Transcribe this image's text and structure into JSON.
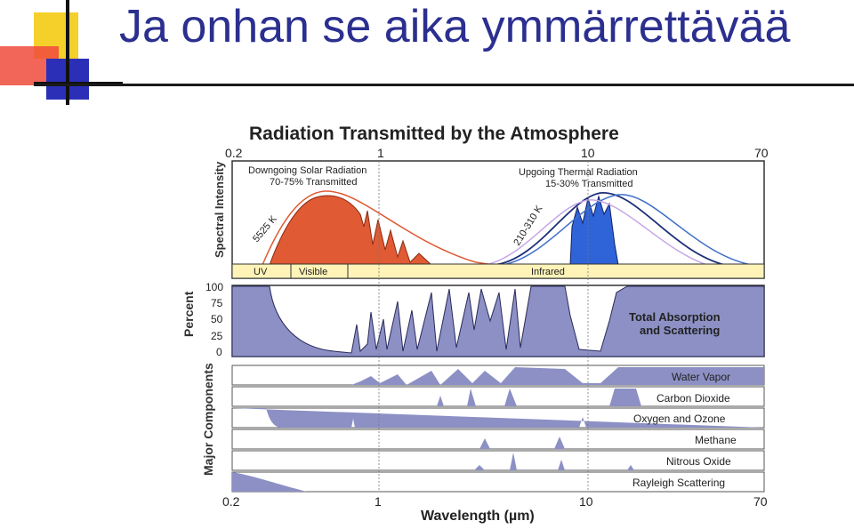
{
  "slide": {
    "title": "Ja onhan se aika ymmärrettävää"
  },
  "figure": {
    "title": "Radiation Transmitted by the Atmosphere",
    "top_ticks": [
      "0.2",
      "1",
      "10",
      "70"
    ],
    "bottom_ticks": [
      "0.2",
      "1",
      "10",
      "70"
    ],
    "xlabel": "Wavelength (µm)",
    "spectral": {
      "ylabel": "Spectral Intensity",
      "solar_label_1": "Downgoing Solar Radiation",
      "solar_label_2": "70-75% Transmitted",
      "thermal_label_1": "Upgoing Thermal Radiation",
      "thermal_label_2": "15-30% Transmitted",
      "solar_temp": "5525 K",
      "thermal_temp": "210-310 K",
      "bands": [
        "UV",
        "Visible",
        "Infrared"
      ]
    },
    "absorption": {
      "ylabel": "Percent",
      "yticks": [
        "100",
        "75",
        "50",
        "25",
        "0"
      ],
      "label_1": "Total Absorption",
      "label_2": "and Scattering"
    },
    "components": {
      "ylabel": "Major Components",
      "items": [
        "Water Vapor",
        "Carbon Dioxide",
        "Oxygen and Ozone",
        "Methane",
        "Nitrous Oxide",
        "Rayleigh Scattering"
      ]
    },
    "colors": {
      "solar_fill": "#e05a33",
      "thermal_fill": "#2f63d8",
      "gas_fill": "#8c90c4",
      "band_fill": "#fff3b8",
      "title_color": "#2b2f8f"
    }
  }
}
